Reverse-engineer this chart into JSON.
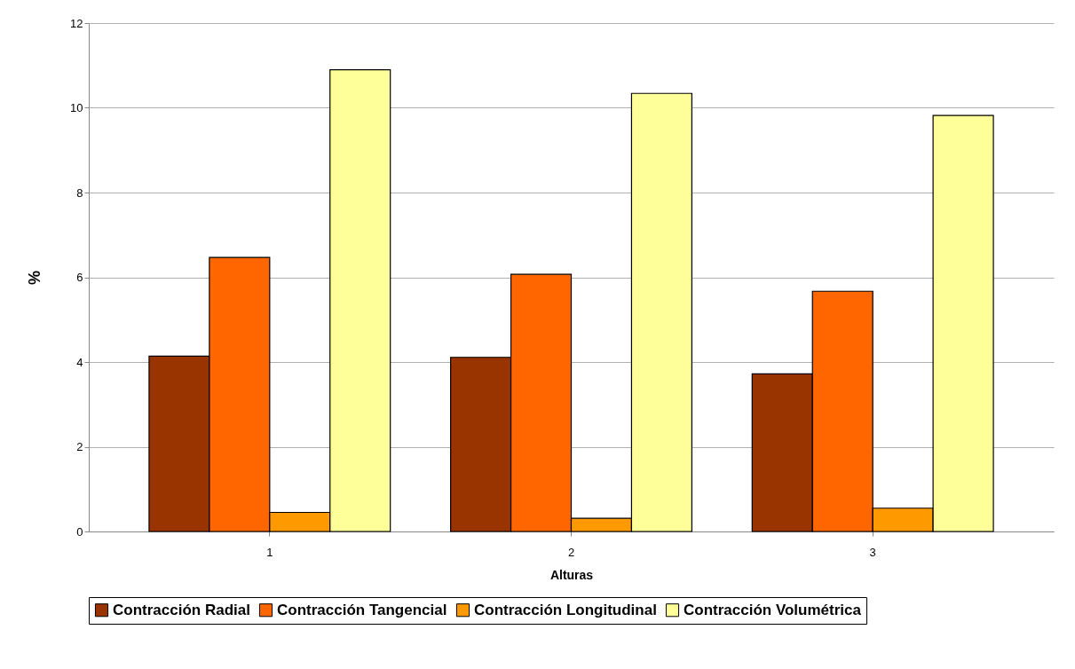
{
  "chart_data": {
    "type": "bar",
    "xlabel": "Alturas",
    "ylabel": "%",
    "categories": [
      "1",
      "2",
      "3"
    ],
    "series": [
      {
        "name": "Contracción Radial",
        "color": "#993300",
        "values": [
          4.14,
          4.11,
          3.72
        ]
      },
      {
        "name": "Contracción Tangencial",
        "color": "#ff6600",
        "values": [
          6.47,
          6.07,
          5.67
        ]
      },
      {
        "name": "Contracción Longitudinal",
        "color": "#ff9900",
        "values": [
          0.45,
          0.31,
          0.55
        ]
      },
      {
        "name": "Contracción Volumétrica",
        "color": "#ffff99",
        "values": [
          10.9,
          10.34,
          9.82
        ]
      }
    ],
    "ylim": [
      0,
      12
    ],
    "yticks": [
      0,
      2,
      4,
      6,
      8,
      10,
      12
    ],
    "grid": "y",
    "legend": "bottom"
  }
}
